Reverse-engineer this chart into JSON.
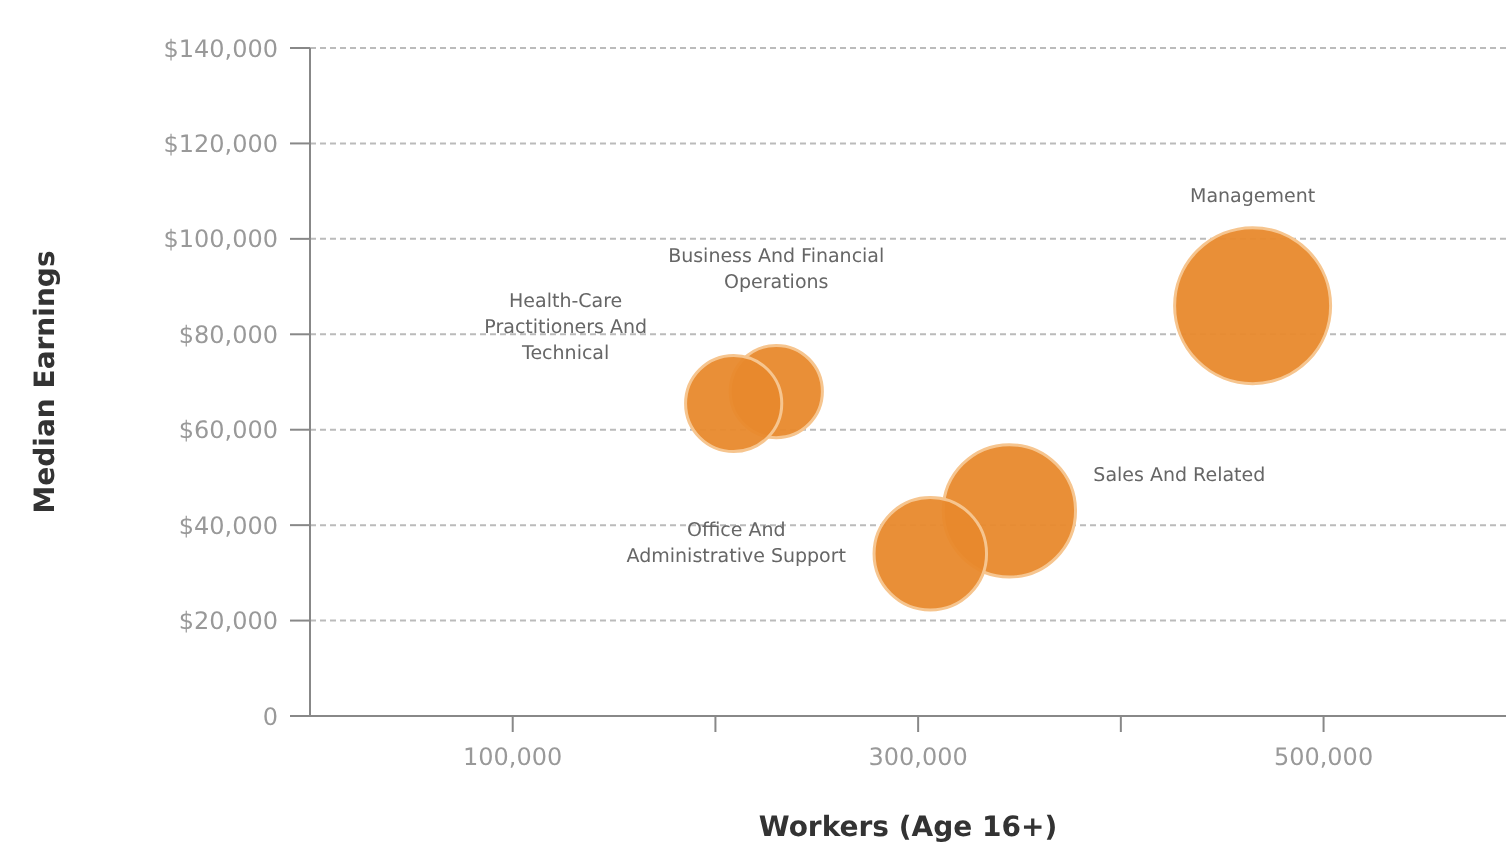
{
  "chart_data": {
    "type": "bubble",
    "xlabel": "Workers (Age 16+)",
    "ylabel": "Median Earnings",
    "x": [
      465000,
      230000,
      209000,
      345000,
      306000
    ],
    "values": [
      86000,
      68000,
      65500,
      43000,
      34000
    ],
    "sizes": [
      1,
      0.35,
      0.38,
      0.72,
      0.52
    ],
    "color": "#e8892c",
    "xlim": [
      0,
      590000
    ],
    "xticks": [
      {
        "value": 100000,
        "label": "100,000"
      },
      {
        "value": 200000,
        "label": null
      },
      {
        "value": 300000,
        "label": "300,000"
      },
      {
        "value": 400000,
        "label": null
      },
      {
        "value": 500000,
        "label": "500,000"
      }
    ],
    "ylim": [
      0,
      140000
    ],
    "yticks": [
      {
        "value": 0,
        "label": "0"
      },
      {
        "value": 20000,
        "label": "$20,000"
      },
      {
        "value": 40000,
        "label": "$40,000"
      },
      {
        "value": 60000,
        "label": "$60,000"
      },
      {
        "value": 80000,
        "label": "$80,000"
      },
      {
        "value": 100000,
        "label": "$100,000"
      },
      {
        "value": 120000,
        "label": "$120,000"
      },
      {
        "value": 140000,
        "label": "$140,000"
      }
    ],
    "grid": "y",
    "legend": false,
    "marker": "circle",
    "annotations": [
      "Management",
      "Business And Financial\nOperations",
      "Health-Care\nPractitioners And\nTechnical",
      "Sales And Related",
      "Office And\nAdministrative Support"
    ]
  }
}
